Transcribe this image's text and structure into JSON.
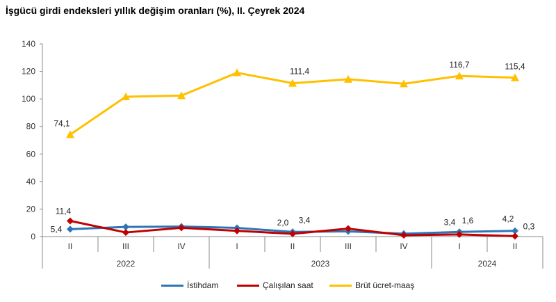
{
  "title": "İşgücü girdi endeksleri yıllık değişim oranları (%), II. Çeyrek 2024",
  "chart_data": {
    "type": "line",
    "categories": [
      "II",
      "III",
      "IV",
      "I",
      "II",
      "III",
      "IV",
      "I",
      "II"
    ],
    "years": [
      {
        "label": "2022",
        "span": [
          0,
          2
        ]
      },
      {
        "label": "2023",
        "span": [
          3,
          6
        ]
      },
      {
        "label": "2024",
        "span": [
          7,
          8
        ]
      }
    ],
    "ylim": [
      0,
      140
    ],
    "yticks": [
      0,
      20,
      40,
      60,
      80,
      100,
      120,
      140
    ],
    "series": [
      {
        "name": "İstihdam",
        "color": "#2E75B6",
        "marker": "diamond",
        "values": [
          5.4,
          7.0,
          7.3,
          6.3,
          3.4,
          3.8,
          2.1,
          3.4,
          4.2
        ]
      },
      {
        "name": "Çalışılan saat",
        "color": "#C00000",
        "marker": "diamond",
        "values": [
          11.4,
          3.0,
          6.4,
          4.2,
          2.0,
          5.8,
          1.0,
          1.6,
          0.3
        ]
      },
      {
        "name": "Brüt ücret-maaş",
        "color": "#FFC000",
        "marker": "triangle",
        "values": [
          74.1,
          101.6,
          102.4,
          119.0,
          111.4,
          114.3,
          111.0,
          116.7,
          115.4
        ]
      }
    ],
    "data_labels": [
      {
        "series": 0,
        "index": 0,
        "text": "5,4"
      },
      {
        "series": 1,
        "index": 0,
        "text": "11,4"
      },
      {
        "series": 2,
        "index": 0,
        "text": "74,1"
      },
      {
        "series": 1,
        "index": 4,
        "text": "2,0"
      },
      {
        "series": 0,
        "index": 4,
        "text": "3,4"
      },
      {
        "series": 2,
        "index": 4,
        "text": "111,4"
      },
      {
        "series": 0,
        "index": 7,
        "text": "3,4"
      },
      {
        "series": 1,
        "index": 7,
        "text": "1,6"
      },
      {
        "series": 2,
        "index": 7,
        "text": "116,7"
      },
      {
        "series": 0,
        "index": 8,
        "text": "4,2"
      },
      {
        "series": 1,
        "index": 8,
        "text": "0,3"
      },
      {
        "series": 2,
        "index": 8,
        "text": "115,4"
      }
    ],
    "legend": "bottom"
  }
}
